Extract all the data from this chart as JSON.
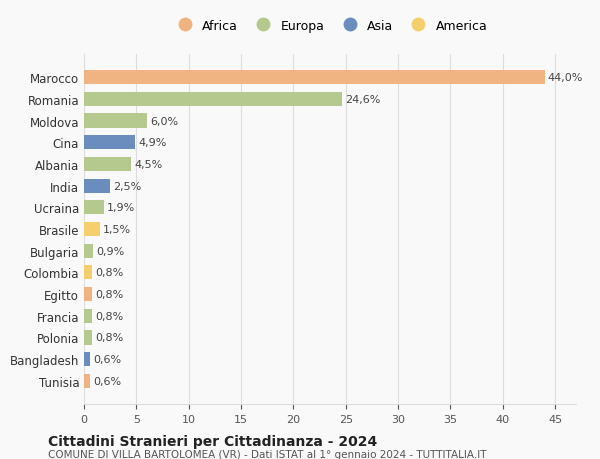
{
  "countries": [
    "Marocco",
    "Romania",
    "Moldova",
    "Cina",
    "Albania",
    "India",
    "Ucraina",
    "Brasile",
    "Bulgaria",
    "Colombia",
    "Egitto",
    "Francia",
    "Polonia",
    "Bangladesh",
    "Tunisia"
  ],
  "values": [
    44.0,
    24.6,
    6.0,
    4.9,
    4.5,
    2.5,
    1.9,
    1.5,
    0.9,
    0.8,
    0.8,
    0.8,
    0.8,
    0.6,
    0.6
  ],
  "labels": [
    "44,0%",
    "24,6%",
    "6,0%",
    "4,9%",
    "4,5%",
    "2,5%",
    "1,9%",
    "1,5%",
    "0,9%",
    "0,8%",
    "0,8%",
    "0,8%",
    "0,8%",
    "0,6%",
    "0,6%"
  ],
  "continents": [
    "Africa",
    "Europa",
    "Europa",
    "Asia",
    "Europa",
    "Asia",
    "Europa",
    "America",
    "Europa",
    "America",
    "Africa",
    "Europa",
    "Europa",
    "Asia",
    "Africa"
  ],
  "continent_colors": {
    "Africa": "#F0B482",
    "Europa": "#B5C98E",
    "Asia": "#6B8DBE",
    "America": "#F5CE6E"
  },
  "legend_order": [
    "Africa",
    "Europa",
    "Asia",
    "America"
  ],
  "title": "Cittadini Stranieri per Cittadinanza - 2024",
  "subtitle": "COMUNE DI VILLA BARTOLOMEA (VR) - Dati ISTAT al 1° gennaio 2024 - TUTTITALIA.IT",
  "xlim": [
    0,
    47
  ],
  "xticks": [
    0,
    5,
    10,
    15,
    20,
    25,
    30,
    35,
    40,
    45
  ],
  "background_color": "#f9f9f9",
  "grid_color": "#dddddd"
}
